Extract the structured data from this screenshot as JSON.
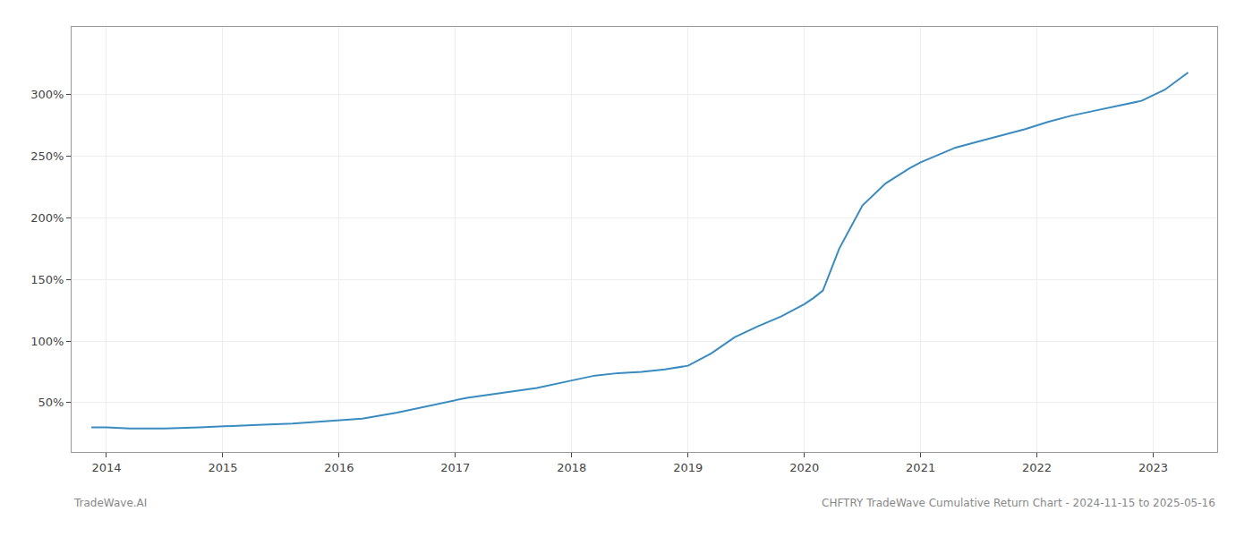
{
  "chart_data": {
    "type": "line",
    "x": [
      2013.87,
      2014.0,
      2014.2,
      2014.5,
      2014.8,
      2015.0,
      2015.3,
      2015.6,
      2015.9,
      2016.2,
      2016.5,
      2016.8,
      2017.1,
      2017.4,
      2017.7,
      2018.0,
      2018.2,
      2018.4,
      2018.6,
      2018.8,
      2019.0,
      2019.2,
      2019.4,
      2019.6,
      2019.8,
      2020.0,
      2020.08,
      2020.16,
      2020.3,
      2020.5,
      2020.7,
      2020.9,
      2021.0,
      2021.1,
      2021.3,
      2021.5,
      2021.7,
      2021.9,
      2022.1,
      2022.3,
      2022.5,
      2022.7,
      2022.9,
      2023.1,
      2023.3
    ],
    "values": [
      30,
      30,
      29,
      29,
      30,
      31,
      32,
      33,
      35,
      37,
      42,
      48,
      54,
      58,
      62,
      68,
      72,
      74,
      75,
      77,
      80,
      90,
      103,
      112,
      120,
      130,
      135,
      141,
      175,
      210,
      228,
      240,
      245,
      249,
      257,
      262,
      267,
      272,
      278,
      283,
      287,
      291,
      295,
      304,
      318
    ],
    "color": "#3a8bbf",
    "xlim": [
      2013.7,
      2023.55
    ],
    "xticks": [
      2014,
      2015,
      2016,
      2017,
      2018,
      2019,
      2020,
      2021,
      2022,
      2023
    ],
    "ylim": [
      10,
      355
    ],
    "yticks": [
      {
        "value": 50,
        "label": "50%"
      },
      {
        "value": 100,
        "label": "100%"
      },
      {
        "value": 150,
        "label": "150%"
      },
      {
        "value": 200,
        "label": "200%"
      },
      {
        "value": 250,
        "label": "250%"
      },
      {
        "value": 300,
        "label": "300%"
      }
    ],
    "grid": true,
    "annotations": [
      "TradeWave.AI",
      "CHFTRY TradeWave Cumulative Return Chart - 2024-11-15 to 2025-05-16"
    ]
  }
}
